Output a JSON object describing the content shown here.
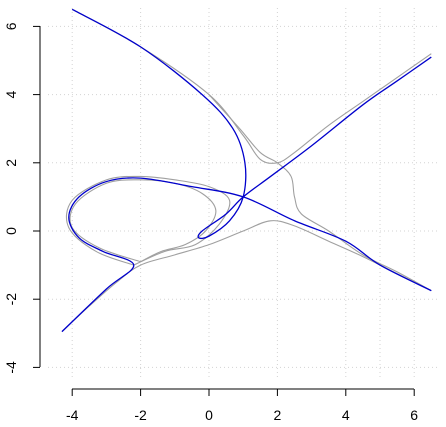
{
  "chart_data": {
    "type": "line",
    "title": "",
    "xlabel": "",
    "ylabel": "",
    "xlim": [
      -4.5,
      6.9
    ],
    "ylim": [
      -4,
      6.3
    ],
    "grid": true,
    "x_ticks": [
      -4,
      -2,
      0,
      2,
      4,
      6
    ],
    "y_ticks": [
      -4,
      -2,
      0,
      2,
      4,
      6
    ],
    "x_tick_labels": [
      "-4",
      "-2",
      "0",
      "2",
      "4",
      "6"
    ],
    "y_tick_labels": [
      "-4",
      "-2",
      "0",
      "2",
      "4",
      "6"
    ],
    "grid_x": [
      -4,
      -2,
      0,
      2,
      4,
      5,
      6
    ],
    "grid_y": [
      -4,
      -2,
      0,
      2,
      4,
      6
    ],
    "colors": {
      "gray_curves": "#a0a0a0",
      "blue_curve": "#0000cc",
      "grid": "#d3d3d3"
    },
    "series": [
      {
        "color": "#a0a0a0",
        "points": [
          [
            -4.0,
            6.5
          ],
          [
            -2.0,
            5.4
          ],
          [
            0.0,
            4.0
          ],
          [
            1.0,
            2.8
          ],
          [
            1.5,
            2.1
          ],
          [
            2.0,
            2.0
          ],
          [
            2.5,
            2.3
          ],
          [
            3.5,
            3.1
          ],
          [
            4.5,
            3.8
          ],
          [
            5.5,
            4.5
          ],
          [
            6.5,
            5.2
          ]
        ]
      },
      {
        "color": "#a0a0a0",
        "points": [
          [
            -4.3,
            -2.95
          ],
          [
            -3.5,
            -2.2
          ],
          [
            -2.7,
            -1.5
          ],
          [
            -2.0,
            -1.0
          ],
          [
            -1.0,
            -0.7
          ],
          [
            0.0,
            -0.4
          ],
          [
            1.0,
            0.0
          ],
          [
            1.8,
            0.3
          ],
          [
            2.5,
            0.15
          ],
          [
            3.5,
            -0.3
          ],
          [
            4.5,
            -0.75
          ],
          [
            5.5,
            -1.25
          ],
          [
            6.5,
            -1.75
          ]
        ]
      },
      {
        "color": "#a0a0a0",
        "points": [
          [
            -2.2,
            -1.0
          ],
          [
            -3.3,
            -0.6
          ],
          [
            -4.1,
            0.1
          ],
          [
            -4.0,
            0.9
          ],
          [
            -3.0,
            1.5
          ],
          [
            -2.0,
            1.6
          ],
          [
            -1.0,
            1.5
          ],
          [
            0.0,
            1.3
          ],
          [
            0.6,
            0.9
          ],
          [
            0.3,
            0.2
          ],
          [
            -0.4,
            -0.4
          ],
          [
            -1.3,
            -0.6
          ],
          [
            -2.2,
            -1.0
          ]
        ]
      },
      {
        "color": "#a0a0a0",
        "points": [
          [
            -2.0,
            -0.9
          ],
          [
            -3.2,
            -0.5
          ],
          [
            -4.0,
            0.1
          ],
          [
            -3.9,
            0.8
          ],
          [
            -3.0,
            1.4
          ],
          [
            -2.0,
            1.5
          ],
          [
            -1.0,
            1.4
          ],
          [
            -0.2,
            1.1
          ],
          [
            0.2,
            0.6
          ],
          [
            -0.1,
            0.0
          ],
          [
            -0.7,
            -0.4
          ],
          [
            -1.4,
            -0.6
          ],
          [
            -2.0,
            -0.9
          ]
        ]
      },
      {
        "color": "#a0a0a0",
        "points": [
          [
            0.0,
            4.0
          ],
          [
            0.9,
            3.0
          ],
          [
            1.5,
            2.3
          ],
          [
            2.0,
            2.0
          ],
          [
            2.4,
            1.6
          ],
          [
            2.5,
            1.0
          ],
          [
            2.7,
            0.5
          ],
          [
            3.5,
            0.0
          ],
          [
            4.5,
            -0.7
          ],
          [
            5.5,
            -1.2
          ],
          [
            6.5,
            -1.75
          ]
        ]
      },
      {
        "color": "#0000cc",
        "points": [
          [
            -4.0,
            6.5
          ],
          [
            -2.0,
            5.4
          ],
          [
            -0.2,
            4.0
          ],
          [
            0.7,
            3.0
          ],
          [
            1.05,
            2.0
          ],
          [
            1.0,
            1.0
          ],
          [
            0.6,
            0.3
          ],
          [
            0.0,
            -0.15
          ],
          [
            -0.3,
            -0.2
          ],
          [
            -0.2,
            0.0
          ],
          [
            0.5,
            0.5
          ],
          [
            1.0,
            1.0
          ],
          [
            1.8,
            1.6
          ],
          [
            3.0,
            2.5
          ],
          [
            4.5,
            3.7
          ],
          [
            5.5,
            4.4
          ],
          [
            6.5,
            5.1
          ]
        ]
      },
      {
        "color": "#0000cc",
        "points": [
          [
            6.5,
            -1.75
          ],
          [
            5.0,
            -1.0
          ],
          [
            4.0,
            -0.3
          ],
          [
            2.5,
            0.3
          ],
          [
            1.0,
            1.0
          ],
          [
            -0.5,
            1.3
          ],
          [
            -2.0,
            1.55
          ],
          [
            -3.0,
            1.45
          ],
          [
            -3.8,
            1.0
          ],
          [
            -4.1,
            0.4
          ],
          [
            -3.8,
            -0.2
          ],
          [
            -3.1,
            -0.6
          ],
          [
            -2.2,
            -1.0
          ],
          [
            -3.0,
            -1.7
          ],
          [
            -4.3,
            -2.95
          ]
        ]
      }
    ]
  }
}
